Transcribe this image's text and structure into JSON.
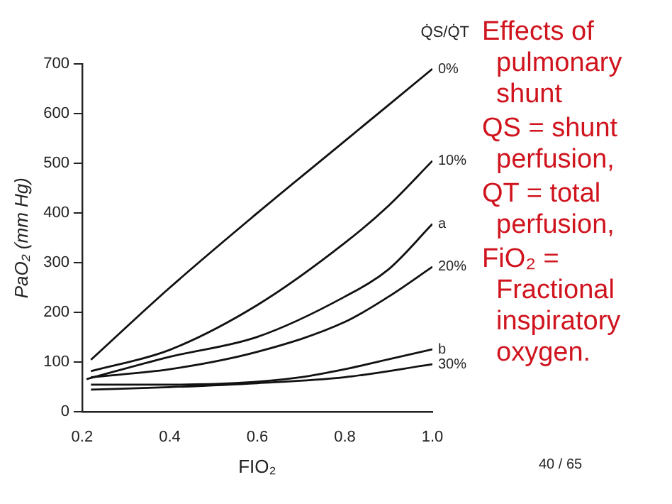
{
  "chart_data": {
    "type": "line",
    "xlabel": "FIO₂",
    "ylabel": "PaO₂ (mm Hg)",
    "legend_title": "Q̇S/Q̇T",
    "xlim": [
      0.2,
      1.0
    ],
    "xticks": [
      0.2,
      0.4,
      0.6,
      0.8,
      {
        "value": 1,
        "label": "1.0"
      }
    ],
    "ylim": [
      0,
      700
    ],
    "yticks": [
      0,
      100,
      200,
      300,
      400,
      500,
      600,
      700
    ],
    "grid": false,
    "legend": false,
    "marker": "none",
    "line_style": "solid",
    "series": [
      {
        "name": "0%",
        "color": "#111111",
        "x": [
          0.22,
          0.4,
          0.6,
          0.8,
          1.0
        ],
        "values": [
          105,
          250,
          400,
          545,
          690
        ]
      },
      {
        "name": "10%",
        "color": "#111111",
        "x": [
          0.22,
          0.4,
          0.6,
          0.8,
          0.9,
          1.0
        ],
        "values": [
          82,
          125,
          215,
          340,
          415,
          505
        ]
      },
      {
        "name": "a",
        "color": "#111111",
        "x": [
          0.21,
          0.4,
          0.6,
          0.8,
          0.9,
          1.0
        ],
        "values": [
          66,
          111,
          151,
          232,
          287,
          378
        ]
      },
      {
        "name": "20%",
        "color": "#111111",
        "x": [
          0.22,
          0.4,
          0.6,
          0.8,
          0.9,
          1.0
        ],
        "values": [
          70,
          86,
          121,
          181,
          232,
          292
        ]
      },
      {
        "name": "b",
        "color": "#111111",
        "x": [
          0.22,
          0.4,
          0.55,
          0.7,
          0.8,
          0.9,
          1.0
        ],
        "values": [
          55,
          55,
          58,
          70,
          86,
          106,
          126
        ]
      },
      {
        "name": "30%",
        "color": "#111111",
        "x": [
          0.22,
          0.4,
          0.6,
          0.8,
          1.0
        ],
        "values": [
          45,
          50,
          58,
          70,
          96
        ]
      }
    ],
    "annotations": [
      "Effects of pulmonary shunt",
      "QS = shunt perfusion,",
      "QT = total perfusion,",
      "FiO₂ = Fractional inspiratory oxygen.",
      "40 / 65"
    ]
  }
}
